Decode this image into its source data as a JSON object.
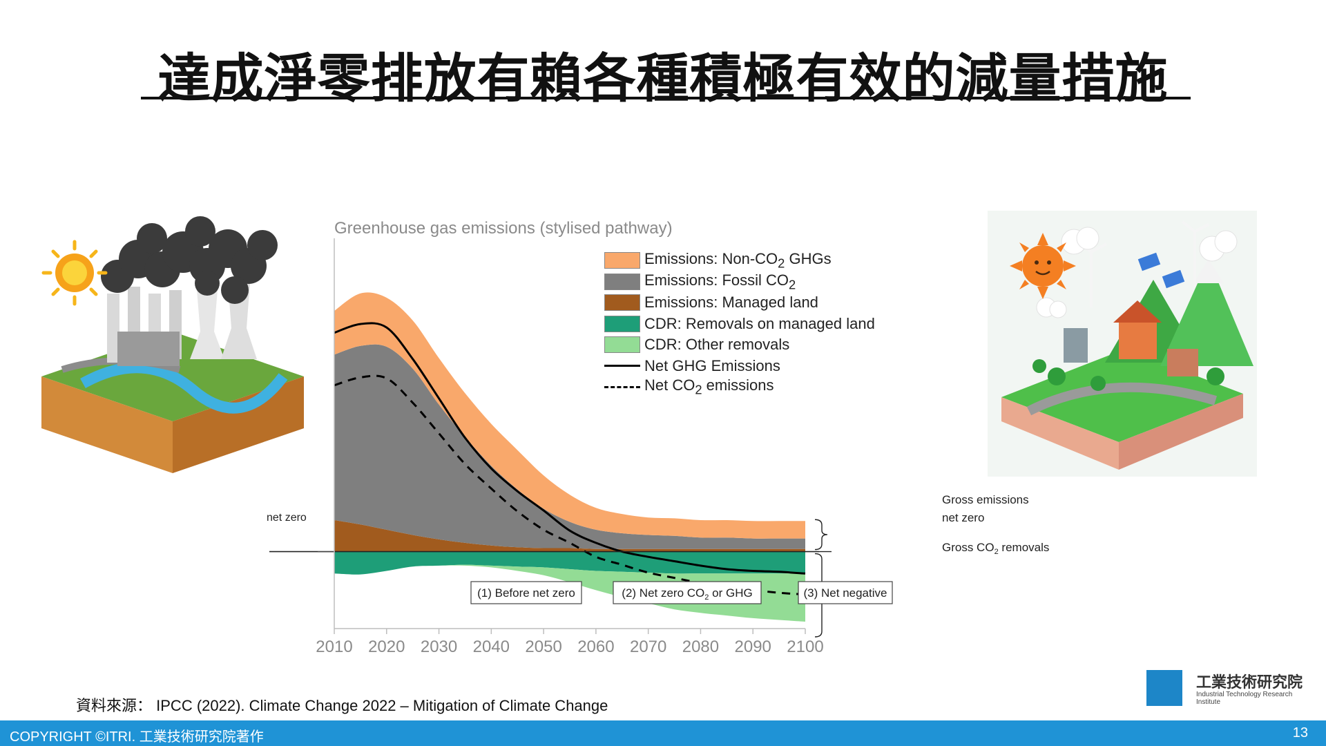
{
  "slide": {
    "title": "達成淨零排放有賴各種積極有效的減量措施",
    "source_label": "資料來源：",
    "source_text": "IPCC (2022). Climate Change 2022 – Mitigation of Climate Change",
    "copyright": "COPYRIGHT ©ITRI. 工業技術研究院著作",
    "page_number": "13",
    "logo_name": "工業技術研究院",
    "logo_sub": "Industrial Technology Research Institute",
    "colors": {
      "footer_bar": "#1f93d6",
      "non_co2": "#f9a86b",
      "fossil_co2": "#7f7f7f",
      "managed_land": "#a15b1e",
      "cdr_managed_land": "#1e9e78",
      "cdr_other": "#93dc95"
    }
  },
  "chart_data": {
    "type": "area",
    "title": "Greenhouse gas emissions (stylised pathway)",
    "x": [
      2010,
      2015,
      2020,
      2025,
      2030,
      2035,
      2040,
      2045,
      2050,
      2055,
      2060,
      2065,
      2070,
      2075,
      2080,
      2085,
      2090,
      2095,
      2100
    ],
    "xticks": [
      "2010",
      "2020",
      "2030",
      "2040",
      "2050",
      "2060",
      "2070",
      "2080",
      "2090",
      "2100"
    ],
    "xlim": [
      2010,
      2100
    ],
    "ylim": [
      -8,
      35
    ],
    "series": [
      {
        "name": "Emissions: Managed land",
        "stack": "positive",
        "color": "#a15b1e",
        "values": [
          3.6,
          3.1,
          2.5,
          1.9,
          1.4,
          1.0,
          0.7,
          0.5,
          0.4,
          0.4,
          0.3,
          0.3,
          0.3,
          0.3,
          0.3,
          0.3,
          0.3,
          0.3,
          0.3
        ]
      },
      {
        "name": "Emissions: Fossil CO2",
        "stack": "positive",
        "color": "#7f7f7f",
        "values": [
          18.9,
          20.4,
          20.9,
          19.0,
          15.4,
          12.1,
          9.1,
          6.6,
          4.5,
          3.0,
          2.2,
          1.8,
          1.6,
          1.5,
          1.3,
          1.3,
          1.2,
          1.2,
          1.2
        ]
      },
      {
        "name": "Emissions: Non-CO2 GHGs",
        "stack": "positive",
        "color": "#f9a86b",
        "values": [
          5.0,
          6.0,
          5.6,
          5.5,
          5.3,
          5.0,
          4.8,
          4.5,
          3.8,
          3.1,
          2.5,
          2.2,
          2.0,
          2.0,
          2.0,
          2.0,
          2.0,
          2.0,
          2.0
        ]
      },
      {
        "name": "CDR: Removals on managed land",
        "stack": "negative",
        "color": "#1e9e78",
        "values": [
          -2.5,
          -2.6,
          -2.2,
          -1.7,
          -1.6,
          -1.5,
          -1.6,
          -1.7,
          -1.8,
          -2.0,
          -2.2,
          -2.3,
          -2.4,
          -2.5,
          -2.5,
          -2.5,
          -2.5,
          -2.5,
          -2.5
        ]
      },
      {
        "name": "CDR: Other removals",
        "stack": "negative",
        "color": "#93dc95",
        "values": [
          0,
          0,
          0,
          0,
          0,
          -0.1,
          -0.2,
          -0.5,
          -0.9,
          -1.5,
          -2.2,
          -2.9,
          -3.5,
          -4.1,
          -4.5,
          -4.8,
          -5.1,
          -5.3,
          -5.5
        ]
      },
      {
        "name": "Net GHG Emissions",
        "kind": "line",
        "style": "solid",
        "values": [
          25.0,
          26.0,
          25.6,
          22.0,
          17.5,
          13.0,
          9.5,
          6.9,
          4.7,
          2.4,
          1.0,
          0.0,
          -0.6,
          -1.1,
          -1.6,
          -2.0,
          -2.2,
          -2.3,
          -2.5
        ]
      },
      {
        "name": "Net CO2 emissions",
        "kind": "line",
        "style": "dashed",
        "values": [
          19.0,
          19.9,
          19.8,
          17.0,
          13.5,
          10.0,
          7.2,
          4.6,
          2.5,
          1.0,
          -0.6,
          -1.5,
          -2.4,
          -3.0,
          -3.6,
          -4.1,
          -4.4,
          -4.7,
          -4.9
        ]
      }
    ],
    "legend": [
      {
        "label": "Emissions: Non-CO",
        "sub": "2",
        "tail": " GHGs",
        "kind": "swatch",
        "color": "#f9a86b"
      },
      {
        "label": "Emissions: Fossil CO",
        "sub": "2",
        "tail": "",
        "kind": "swatch",
        "color": "#7f7f7f"
      },
      {
        "label": "Emissions: Managed land",
        "sub": "",
        "tail": "",
        "kind": "swatch",
        "color": "#a15b1e"
      },
      {
        "label": "CDR: Removals on managed land",
        "sub": "",
        "tail": "",
        "kind": "swatch",
        "color": "#1e9e78"
      },
      {
        "label": "CDR: Other removals",
        "sub": "",
        "tail": "",
        "kind": "swatch",
        "color": "#93dc95"
      },
      {
        "label": "Net GHG Emissions",
        "sub": "",
        "tail": "",
        "kind": "solid",
        "color": "#000000"
      },
      {
        "label": "Net CO",
        "sub": "2",
        "tail": " emissions",
        "kind": "dashed",
        "color": "#000000"
      }
    ],
    "legend_placement": "top-right",
    "annotations": {
      "net_zero_left": "net zero",
      "net_zero_right": "net zero",
      "gross_emissions": "Gross emissions",
      "gross_removals_prefix": "Gross CO",
      "gross_removals_sub": "2",
      "gross_removals_suffix": " removals"
    },
    "phases": [
      {
        "text": "(1) Before net zero",
        "sub": "",
        "tail": ""
      },
      {
        "text": "(2) Net zero CO",
        "sub": "2",
        "tail": " or GHG"
      },
      {
        "text": "(3) Net negative",
        "sub": "",
        "tail": ""
      }
    ]
  }
}
